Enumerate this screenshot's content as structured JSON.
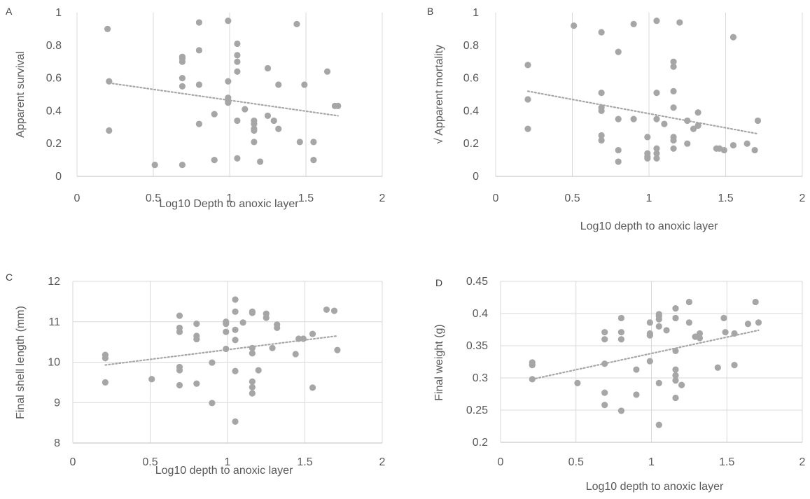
{
  "chart_data": [
    {
      "type": "scatter",
      "panel_label": "A",
      "xlabel": "Log10 Depth to anoxic layer",
      "ylabel": "Apparent survival",
      "xlim": [
        0,
        2
      ],
      "ylim": [
        0,
        1
      ],
      "xticks": [
        0,
        0.5,
        1,
        1.5,
        2
      ],
      "xtick_labels": [
        "0",
        "0.5",
        "1",
        "1.5",
        "2"
      ],
      "yticks": [
        0,
        0.2,
        0.4,
        0.6,
        0.8,
        1
      ],
      "ytick_labels": [
        "0",
        "0.2",
        "0.4",
        "0.6",
        "0.8",
        "1"
      ],
      "grid": "vertical",
      "trendline": {
        "style": "dotted",
        "x": [
          0.21,
          1.71
        ],
        "y": [
          0.57,
          0.37
        ]
      },
      "series": [
        {
          "color": "#a6a6a6",
          "points": [
            [
              0.2,
              0.9
            ],
            [
              0.21,
              0.58
            ],
            [
              0.21,
              0.28
            ],
            [
              0.51,
              0.07
            ],
            [
              0.69,
              0.73
            ],
            [
              0.69,
              0.72
            ],
            [
              0.69,
              0.7
            ],
            [
              0.69,
              0.6
            ],
            [
              0.69,
              0.55
            ],
            [
              0.69,
              0.07
            ],
            [
              0.8,
              0.94
            ],
            [
              0.8,
              0.77
            ],
            [
              0.8,
              0.56
            ],
            [
              0.8,
              0.32
            ],
            [
              0.9,
              0.38
            ],
            [
              0.9,
              0.1
            ],
            [
              0.99,
              0.95
            ],
            [
              0.99,
              0.58
            ],
            [
              0.99,
              0.48
            ],
            [
              0.99,
              0.46
            ],
            [
              0.99,
              0.45
            ],
            [
              1.05,
              0.81
            ],
            [
              1.05,
              0.74
            ],
            [
              1.05,
              0.7
            ],
            [
              1.05,
              0.64
            ],
            [
              1.05,
              0.34
            ],
            [
              1.05,
              0.11
            ],
            [
              1.1,
              0.41
            ],
            [
              1.16,
              0.34
            ],
            [
              1.16,
              0.32
            ],
            [
              1.16,
              0.29
            ],
            [
              1.16,
              0.28
            ],
            [
              1.16,
              0.21
            ],
            [
              1.2,
              0.09
            ],
            [
              1.25,
              0.66
            ],
            [
              1.25,
              0.37
            ],
            [
              1.29,
              0.34
            ],
            [
              1.32,
              0.56
            ],
            [
              1.32,
              0.29
            ],
            [
              1.44,
              0.93
            ],
            [
              1.46,
              0.21
            ],
            [
              1.49,
              0.56
            ],
            [
              1.55,
              0.21
            ],
            [
              1.55,
              0.1
            ],
            [
              1.64,
              0.64
            ],
            [
              1.69,
              0.43
            ],
            [
              1.71,
              0.43
            ]
          ]
        }
      ]
    },
    {
      "type": "scatter",
      "panel_label": "B",
      "xlabel": "Log10 depth to anoxic layer",
      "ylabel": "√ Apparent mortality",
      "xlim": [
        0,
        2
      ],
      "ylim": [
        0,
        1
      ],
      "xticks": [
        0,
        0.5,
        1,
        1.5,
        2
      ],
      "xtick_labels": [
        "0",
        "0.5",
        "1",
        "1.5",
        "2"
      ],
      "yticks": [
        0,
        0.2,
        0.4,
        0.6,
        0.8,
        1
      ],
      "ytick_labels": [
        "0",
        "0.2",
        "0.4",
        "0.6",
        "0.8",
        "1"
      ],
      "grid": "vertical",
      "trendline": {
        "style": "dotted",
        "x": [
          0.21,
          1.71
        ],
        "y": [
          0.52,
          0.26
        ]
      },
      "series": [
        {
          "color": "#a6a6a6",
          "points": [
            [
              0.21,
              0.68
            ],
            [
              0.21,
              0.47
            ],
            [
              0.21,
              0.29
            ],
            [
              0.51,
              0.92
            ],
            [
              0.69,
              0.88
            ],
            [
              0.69,
              0.51
            ],
            [
              0.69,
              0.42
            ],
            [
              0.69,
              0.4
            ],
            [
              0.69,
              0.25
            ],
            [
              0.69,
              0.22
            ],
            [
              0.8,
              0.76
            ],
            [
              0.8,
              0.35
            ],
            [
              0.8,
              0.16
            ],
            [
              0.8,
              0.09
            ],
            [
              0.9,
              0.93
            ],
            [
              0.9,
              0.35
            ],
            [
              0.99,
              0.24
            ],
            [
              0.99,
              0.14
            ],
            [
              0.99,
              0.12
            ],
            [
              0.99,
              0.11
            ],
            [
              1.05,
              0.95
            ],
            [
              1.05,
              0.51
            ],
            [
              1.05,
              0.35
            ],
            [
              1.05,
              0.17
            ],
            [
              1.05,
              0.14
            ],
            [
              1.05,
              0.11
            ],
            [
              1.1,
              0.32
            ],
            [
              1.16,
              0.7
            ],
            [
              1.16,
              0.67
            ],
            [
              1.16,
              0.52
            ],
            [
              1.16,
              0.42
            ],
            [
              1.16,
              0.24
            ],
            [
              1.16,
              0.22
            ],
            [
              1.16,
              0.17
            ],
            [
              1.2,
              0.94
            ],
            [
              1.25,
              0.34
            ],
            [
              1.25,
              0.2
            ],
            [
              1.29,
              0.29
            ],
            [
              1.32,
              0.39
            ],
            [
              1.32,
              0.31
            ],
            [
              1.44,
              0.17
            ],
            [
              1.46,
              0.17
            ],
            [
              1.49,
              0.16
            ],
            [
              1.55,
              0.85
            ],
            [
              1.55,
              0.19
            ],
            [
              1.64,
              0.2
            ],
            [
              1.69,
              0.16
            ],
            [
              1.71,
              0.34
            ]
          ]
        }
      ]
    },
    {
      "type": "scatter",
      "panel_label": "C",
      "xlabel": "Log10 depth to anoxic layer",
      "ylabel": "Final shell length (mm)",
      "xlim": [
        0,
        2
      ],
      "ylim": [
        8,
        12
      ],
      "xticks": [
        0,
        0.5,
        1,
        1.5,
        2
      ],
      "xtick_labels": [
        "0",
        "0.5",
        "1",
        "1.5",
        "2"
      ],
      "yticks": [
        8,
        9,
        10,
        11,
        12
      ],
      "ytick_labels": [
        "8",
        "9",
        "10",
        "11",
        "12"
      ],
      "grid": "both",
      "trendline": {
        "style": "dotted",
        "x": [
          0.21,
          1.71
        ],
        "y": [
          9.93,
          10.65
        ]
      },
      "series": [
        {
          "color": "#a6a6a6",
          "points": [
            [
              0.21,
              10.18
            ],
            [
              0.21,
              10.1
            ],
            [
              0.21,
              9.5
            ],
            [
              0.51,
              9.58
            ],
            [
              0.69,
              11.15
            ],
            [
              0.69,
              10.85
            ],
            [
              0.69,
              10.75
            ],
            [
              0.69,
              9.88
            ],
            [
              0.69,
              9.8
            ],
            [
              0.69,
              9.43
            ],
            [
              0.8,
              10.95
            ],
            [
              0.8,
              10.65
            ],
            [
              0.8,
              10.57
            ],
            [
              0.8,
              9.47
            ],
            [
              0.9,
              9.99
            ],
            [
              0.9,
              8.99
            ],
            [
              0.99,
              11.0
            ],
            [
              0.99,
              10.95
            ],
            [
              0.99,
              10.75
            ],
            [
              0.99,
              10.33
            ],
            [
              1.05,
              11.55
            ],
            [
              1.05,
              11.25
            ],
            [
              1.05,
              10.8
            ],
            [
              1.05,
              10.55
            ],
            [
              1.05,
              9.78
            ],
            [
              1.05,
              8.53
            ],
            [
              1.1,
              10.98
            ],
            [
              1.16,
              11.25
            ],
            [
              1.16,
              11.22
            ],
            [
              1.16,
              10.35
            ],
            [
              1.16,
              10.22
            ],
            [
              1.16,
              9.52
            ],
            [
              1.16,
              9.38
            ],
            [
              1.16,
              9.23
            ],
            [
              1.2,
              9.8
            ],
            [
              1.25,
              11.2
            ],
            [
              1.25,
              11.1
            ],
            [
              1.29,
              10.35
            ],
            [
              1.32,
              10.93
            ],
            [
              1.32,
              10.85
            ],
            [
              1.44,
              10.2
            ],
            [
              1.46,
              10.58
            ],
            [
              1.49,
              10.58
            ],
            [
              1.55,
              10.7
            ],
            [
              1.55,
              9.37
            ],
            [
              1.64,
              11.3
            ],
            [
              1.69,
              11.27
            ],
            [
              1.71,
              10.3
            ]
          ]
        }
      ]
    },
    {
      "type": "scatter",
      "panel_label": "D",
      "xlabel": "Log10 depth to anoxic layer",
      "ylabel": "Final weight (g)",
      "xlim": [
        0,
        2
      ],
      "ylim": [
        0.2,
        0.45
      ],
      "xticks": [
        0,
        0.5,
        1,
        1.5,
        2
      ],
      "xtick_labels": [
        "0",
        "0.5",
        "1",
        "1.5",
        "2"
      ],
      "yticks": [
        0.2,
        0.25,
        0.3,
        0.35,
        0.4,
        0.45
      ],
      "ytick_labels": [
        "0.2",
        "0.25",
        "0.3",
        "0.35",
        "0.4",
        "0.45"
      ],
      "grid": "both",
      "trendline": {
        "style": "dotted",
        "x": [
          0.21,
          1.71
        ],
        "y": [
          0.298,
          0.374
        ]
      },
      "series": [
        {
          "color": "#a6a6a6",
          "points": [
            [
              0.21,
              0.324
            ],
            [
              0.21,
              0.32
            ],
            [
              0.21,
              0.298
            ],
            [
              0.51,
              0.292
            ],
            [
              0.69,
              0.371
            ],
            [
              0.69,
              0.36
            ],
            [
              0.69,
              0.322
            ],
            [
              0.69,
              0.277
            ],
            [
              0.69,
              0.258
            ],
            [
              0.8,
              0.393
            ],
            [
              0.8,
              0.371
            ],
            [
              0.8,
              0.36
            ],
            [
              0.8,
              0.249
            ],
            [
              0.9,
              0.313
            ],
            [
              0.9,
              0.274
            ],
            [
              0.99,
              0.386
            ],
            [
              0.99,
              0.369
            ],
            [
              0.99,
              0.366
            ],
            [
              0.99,
              0.326
            ],
            [
              1.05,
              0.399
            ],
            [
              1.05,
              0.396
            ],
            [
              1.05,
              0.391
            ],
            [
              1.05,
              0.38
            ],
            [
              1.05,
              0.292
            ],
            [
              1.05,
              0.227
            ],
            [
              1.1,
              0.374
            ],
            [
              1.16,
              0.408
            ],
            [
              1.16,
              0.393
            ],
            [
              1.16,
              0.342
            ],
            [
              1.16,
              0.313
            ],
            [
              1.16,
              0.304
            ],
            [
              1.16,
              0.296
            ],
            [
              1.16,
              0.269
            ],
            [
              1.2,
              0.289
            ],
            [
              1.25,
              0.418
            ],
            [
              1.25,
              0.386
            ],
            [
              1.29,
              0.364
            ],
            [
              1.32,
              0.369
            ],
            [
              1.32,
              0.362
            ],
            [
              1.44,
              0.316
            ],
            [
              1.48,
              0.393
            ],
            [
              1.49,
              0.371
            ],
            [
              1.55,
              0.369
            ],
            [
              1.55,
              0.32
            ],
            [
              1.64,
              0.384
            ],
            [
              1.69,
              0.418
            ],
            [
              1.71,
              0.386
            ]
          ]
        }
      ]
    }
  ]
}
